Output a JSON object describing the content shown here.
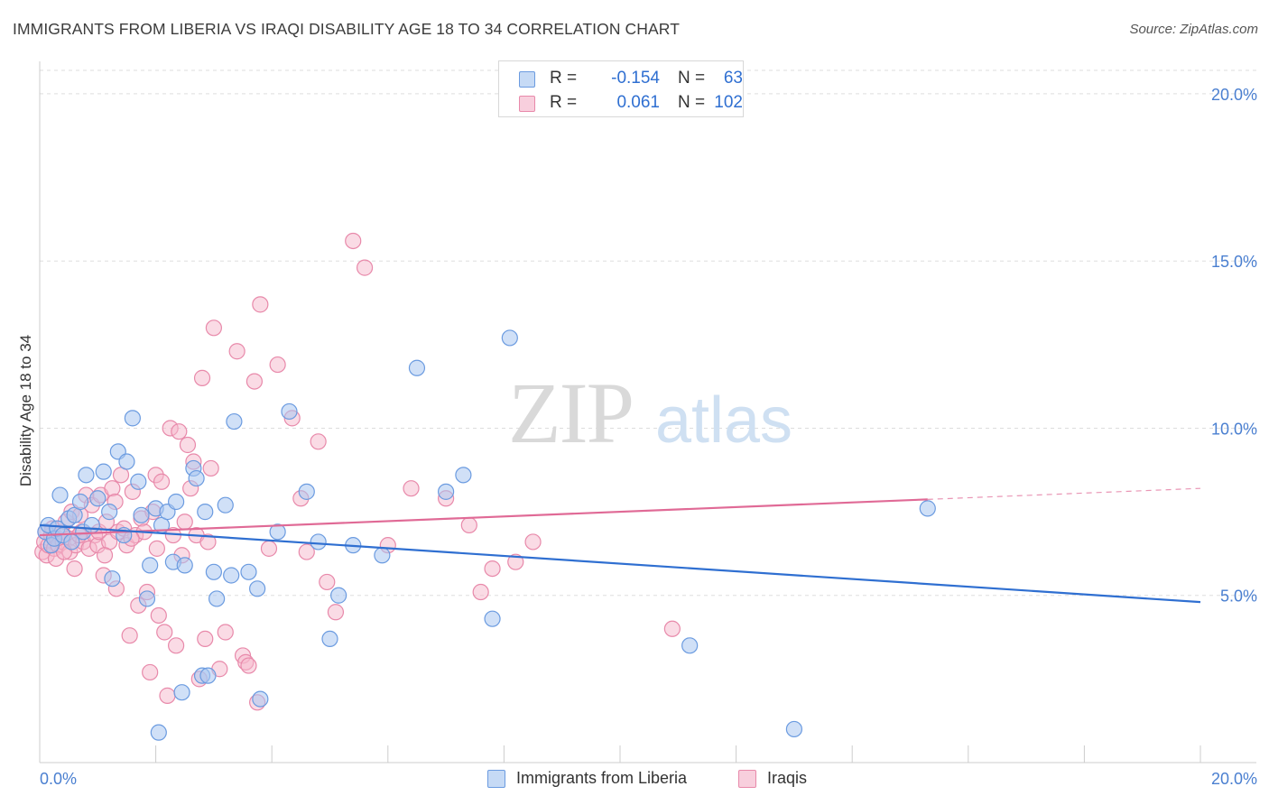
{
  "header": {
    "title": "IMMIGRANTS FROM LIBERIA VS IRAQI DISABILITY AGE 18 TO 34 CORRELATION CHART",
    "source": "Source: ZipAtlas.com"
  },
  "watermark": {
    "zip": "ZIP",
    "atlas": "atlas"
  },
  "legend_top": {
    "rows": [
      {
        "r_label": "R =",
        "r_value": "-0.154",
        "n_label": "N =",
        "n_value": "63"
      },
      {
        "r_label": "R =",
        "r_value": "0.061",
        "n_label": "N =",
        "n_value": "102"
      }
    ]
  },
  "legend_bottom": {
    "series1": "Immigrants from Liberia",
    "series2": "Iraqis"
  },
  "colors": {
    "blue_fill": "#a9c6f0",
    "blue_stroke": "#6b9be0",
    "blue_line": "#2f6fd1",
    "pink_fill": "#f5b7cc",
    "pink_stroke": "#e889aa",
    "pink_line": "#e06a96",
    "tick_text": "#4a7fd0",
    "grid": "#dddddd"
  },
  "chart_data": {
    "type": "scatter",
    "title": "IMMIGRANTS FROM LIBERIA VS IRAQI DISABILITY AGE 18 TO 34 CORRELATION CHART",
    "xlabel": "",
    "ylabel": "Disability Age 18 to 34",
    "xlim": [
      0,
      20
    ],
    "ylim": [
      0,
      20.7
    ],
    "x_tick_labels": [
      "0.0%",
      "20.0%"
    ],
    "y_ticks": [
      5,
      10,
      15,
      20
    ],
    "y_tick_labels": [
      "5.0%",
      "10.0%",
      "15.0%",
      "20.0%"
    ],
    "grid": true,
    "series": [
      {
        "name": "Immigrants from Liberia",
        "r": -0.154,
        "n": 63,
        "trend": {
          "x": [
            0,
            20
          ],
          "y": [
            7.1,
            4.8
          ],
          "solid_to": 20
        },
        "points": [
          [
            0.1,
            6.9
          ],
          [
            0.15,
            7.1
          ],
          [
            0.2,
            6.5
          ],
          [
            0.25,
            6.7
          ],
          [
            0.3,
            7.0
          ],
          [
            0.35,
            8.0
          ],
          [
            0.4,
            6.8
          ],
          [
            0.5,
            7.3
          ],
          [
            0.6,
            7.4
          ],
          [
            0.7,
            7.8
          ],
          [
            0.75,
            6.9
          ],
          [
            0.8,
            8.6
          ],
          [
            0.9,
            7.1
          ],
          [
            1.0,
            7.9
          ],
          [
            1.1,
            8.7
          ],
          [
            1.2,
            7.5
          ],
          [
            1.25,
            5.5
          ],
          [
            1.35,
            9.3
          ],
          [
            1.45,
            6.8
          ],
          [
            1.5,
            9.0
          ],
          [
            1.6,
            10.3
          ],
          [
            1.7,
            8.4
          ],
          [
            1.75,
            7.4
          ],
          [
            1.85,
            4.9
          ],
          [
            1.9,
            5.9
          ],
          [
            2.0,
            7.6
          ],
          [
            2.05,
            0.9
          ],
          [
            2.1,
            7.1
          ],
          [
            2.2,
            7.5
          ],
          [
            2.3,
            6.0
          ],
          [
            2.35,
            7.8
          ],
          [
            2.45,
            2.1
          ],
          [
            2.5,
            5.9
          ],
          [
            2.65,
            8.8
          ],
          [
            2.7,
            8.5
          ],
          [
            2.8,
            2.6
          ],
          [
            2.85,
            7.5
          ],
          [
            2.9,
            2.6
          ],
          [
            3.0,
            5.7
          ],
          [
            3.05,
            4.9
          ],
          [
            3.2,
            7.7
          ],
          [
            3.3,
            5.6
          ],
          [
            3.35,
            10.2
          ],
          [
            3.6,
            5.7
          ],
          [
            3.75,
            5.2
          ],
          [
            3.8,
            1.9
          ],
          [
            4.1,
            6.9
          ],
          [
            4.3,
            10.5
          ],
          [
            4.6,
            8.1
          ],
          [
            4.8,
            6.6
          ],
          [
            5.0,
            3.7
          ],
          [
            5.15,
            5.0
          ],
          [
            5.4,
            6.5
          ],
          [
            5.9,
            6.2
          ],
          [
            6.5,
            11.8
          ],
          [
            7.0,
            8.1
          ],
          [
            7.3,
            8.6
          ],
          [
            7.8,
            4.3
          ],
          [
            8.1,
            12.7
          ],
          [
            11.2,
            3.5
          ],
          [
            13.0,
            1.0
          ],
          [
            15.3,
            7.6
          ],
          [
            0.55,
            6.6
          ]
        ]
      },
      {
        "name": "Iraqis",
        "r": 0.061,
        "n": 102,
        "trend": {
          "x": [
            0,
            20
          ],
          "y": [
            6.8,
            8.2
          ],
          "solid_to": 15.3
        },
        "points": [
          [
            0.05,
            6.3
          ],
          [
            0.08,
            6.6
          ],
          [
            0.1,
            6.9
          ],
          [
            0.12,
            6.2
          ],
          [
            0.15,
            6.5
          ],
          [
            0.2,
            6.8
          ],
          [
            0.22,
            7.0
          ],
          [
            0.25,
            6.4
          ],
          [
            0.3,
            6.7
          ],
          [
            0.32,
            6.5
          ],
          [
            0.38,
            6.9
          ],
          [
            0.4,
            6.6
          ],
          [
            0.45,
            7.2
          ],
          [
            0.5,
            6.7
          ],
          [
            0.52,
            6.3
          ],
          [
            0.55,
            7.5
          ],
          [
            0.6,
            5.8
          ],
          [
            0.62,
            6.5
          ],
          [
            0.7,
            7.4
          ],
          [
            0.72,
            6.9
          ],
          [
            0.75,
            6.6
          ],
          [
            0.8,
            8.0
          ],
          [
            0.85,
            6.4
          ],
          [
            0.9,
            7.7
          ],
          [
            0.95,
            6.8
          ],
          [
            1.0,
            6.5
          ],
          [
            1.02,
            6.9
          ],
          [
            1.05,
            8.0
          ],
          [
            1.1,
            5.6
          ],
          [
            1.15,
            7.2
          ],
          [
            1.2,
            6.6
          ],
          [
            1.25,
            8.2
          ],
          [
            1.3,
            7.8
          ],
          [
            1.32,
            5.2
          ],
          [
            1.35,
            6.9
          ],
          [
            1.4,
            8.6
          ],
          [
            1.45,
            7.0
          ],
          [
            1.5,
            6.5
          ],
          [
            1.55,
            3.8
          ],
          [
            1.6,
            8.1
          ],
          [
            1.65,
            6.8
          ],
          [
            1.7,
            4.7
          ],
          [
            1.75,
            7.3
          ],
          [
            1.8,
            6.9
          ],
          [
            1.85,
            5.1
          ],
          [
            1.9,
            2.7
          ],
          [
            1.95,
            7.5
          ],
          [
            2.0,
            8.6
          ],
          [
            2.05,
            4.4
          ],
          [
            2.1,
            8.4
          ],
          [
            2.15,
            3.9
          ],
          [
            2.2,
            2.0
          ],
          [
            2.25,
            10.0
          ],
          [
            2.3,
            6.8
          ],
          [
            2.35,
            3.5
          ],
          [
            2.4,
            9.9
          ],
          [
            2.45,
            6.2
          ],
          [
            2.5,
            7.2
          ],
          [
            2.55,
            9.5
          ],
          [
            2.6,
            8.2
          ],
          [
            2.65,
            9.0
          ],
          [
            2.7,
            6.8
          ],
          [
            2.75,
            2.5
          ],
          [
            2.8,
            11.5
          ],
          [
            2.85,
            3.7
          ],
          [
            2.9,
            6.6
          ],
          [
            2.95,
            8.8
          ],
          [
            3.0,
            13.0
          ],
          [
            3.1,
            2.8
          ],
          [
            3.2,
            3.9
          ],
          [
            3.4,
            12.3
          ],
          [
            3.5,
            3.2
          ],
          [
            3.55,
            3.0
          ],
          [
            3.6,
            2.9
          ],
          [
            3.7,
            11.4
          ],
          [
            3.75,
            1.8
          ],
          [
            3.8,
            13.7
          ],
          [
            3.95,
            6.4
          ],
          [
            4.1,
            11.9
          ],
          [
            4.35,
            10.3
          ],
          [
            4.5,
            7.9
          ],
          [
            4.6,
            6.3
          ],
          [
            4.8,
            9.6
          ],
          [
            4.95,
            5.4
          ],
          [
            5.1,
            4.5
          ],
          [
            5.4,
            15.6
          ],
          [
            5.6,
            14.8
          ],
          [
            6.0,
            6.5
          ],
          [
            6.4,
            8.2
          ],
          [
            7.0,
            7.9
          ],
          [
            7.4,
            7.1
          ],
          [
            7.6,
            5.1
          ],
          [
            7.8,
            5.8
          ],
          [
            8.2,
            6.0
          ],
          [
            8.5,
            6.6
          ],
          [
            10.9,
            4.0
          ],
          [
            0.28,
            6.1
          ],
          [
            0.42,
            6.3
          ],
          [
            0.68,
            6.8
          ],
          [
            1.12,
            6.2
          ],
          [
            1.58,
            6.7
          ],
          [
            2.02,
            6.4
          ]
        ]
      }
    ]
  }
}
